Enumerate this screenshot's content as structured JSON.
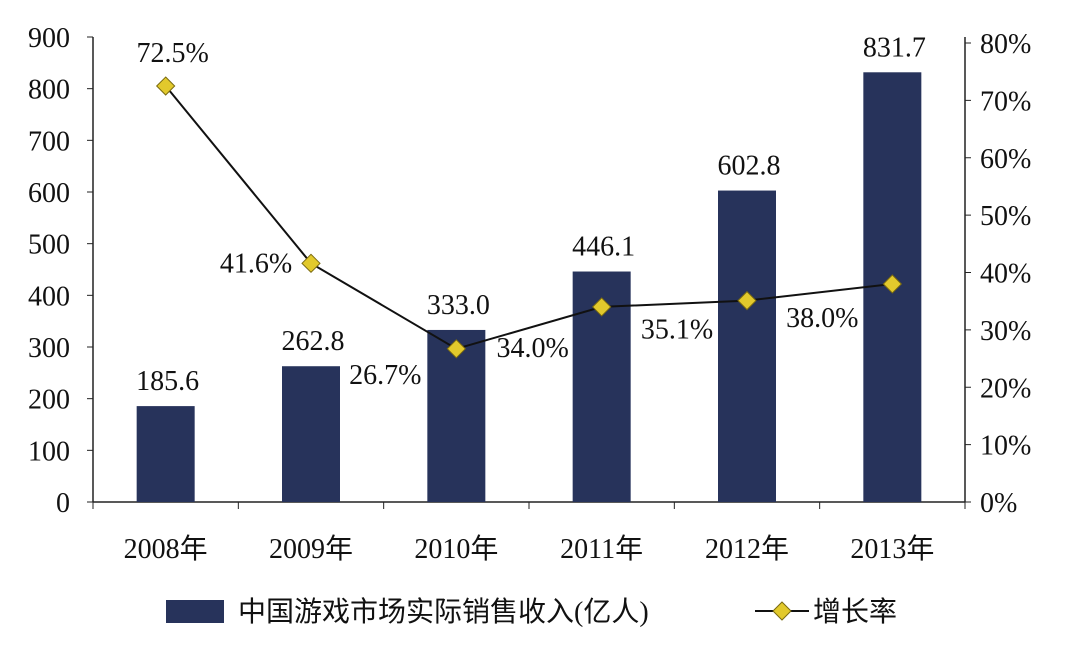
{
  "chart_data": {
    "type": "bar+line",
    "categories": [
      "2008年",
      "2009年",
      "2010年",
      "2011年",
      "2012年",
      "2013年"
    ],
    "series": [
      {
        "name": "中国游戏市场实际销售收入(亿人)",
        "type": "bar",
        "axis": "left",
        "values": [
          185.6,
          262.8,
          333.0,
          446.1,
          602.8,
          831.7
        ],
        "labels": [
          "185.6",
          "262.8",
          "333.0",
          "446.1",
          "602.8",
          "831.7"
        ],
        "color": "#27335b"
      },
      {
        "name": "增长率",
        "type": "line",
        "axis": "right",
        "values": [
          72.5,
          41.6,
          26.7,
          34.0,
          35.1,
          38.0
        ],
        "labels": [
          "72.5%",
          "41.6%",
          "26.7%",
          "34.0%",
          "35.1%",
          "38.0%"
        ],
        "color": "#111111",
        "marker": "diamond",
        "marker_color": "#e2c92c"
      }
    ],
    "y_left": {
      "ylim": [
        0,
        900
      ],
      "ticks": [
        "0",
        "100",
        "200",
        "300",
        "400",
        "500",
        "600",
        "700",
        "800",
        "900"
      ]
    },
    "y_right": {
      "ylim": [
        0,
        80
      ],
      "ticks": [
        "0%",
        "10%",
        "20%",
        "30%",
        "40%",
        "50%",
        "60%",
        "70%",
        "80%"
      ]
    },
    "grid": false,
    "legend": "bottom"
  }
}
